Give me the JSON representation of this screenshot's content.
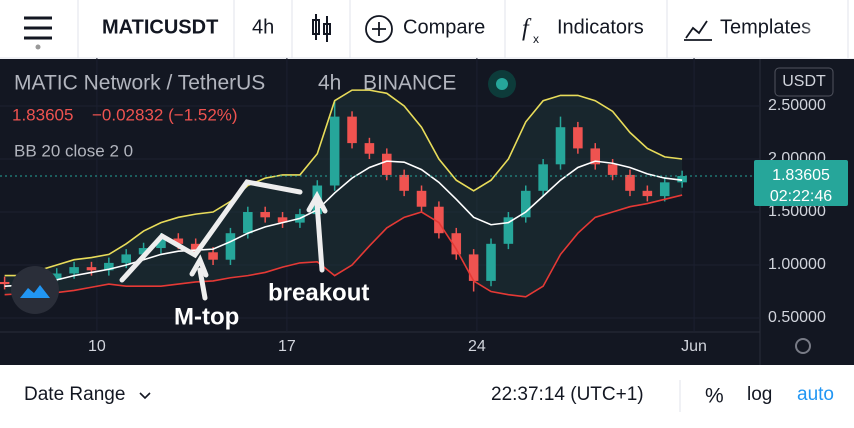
{
  "toolbar": {
    "symbol": "MATICUSDT",
    "interval": "4h",
    "compare": "Compare",
    "indicators": "Indicators",
    "templates": "Templates"
  },
  "legend": {
    "name": "MATIC Network / TetherUS",
    "interval": "4h",
    "exchange": "BINANCE",
    "price": "1.83605",
    "change": "−0.02832 (−1.52%)",
    "indicator": "BB 20 close 2 0"
  },
  "currency": "USDT",
  "last_price": "1.83605",
  "countdown": "02:22:46",
  "annotations": [
    "M-top",
    "breakout"
  ],
  "bottom": {
    "date_range": "Date Range",
    "time": "22:37:14 (UTC+1)",
    "percent": "%",
    "log": "log",
    "auto": "auto"
  },
  "chart_data": {
    "type": "candlestick",
    "x": [
      6.6,
      7.24,
      7.88,
      8.52,
      9.16,
      9.8,
      10.44,
      11.08,
      11.72,
      12.36,
      13,
      13.64,
      14.28,
      14.92,
      15.56,
      16.2,
      16.84,
      17.48,
      18.12,
      18.76,
      19.4,
      20.04,
      20.68,
      21.32,
      21.96,
      22.6,
      23.24,
      23.88,
      24.52,
      25.16,
      25.8,
      26.44,
      27.08,
      27.72,
      28.36,
      29,
      29.64,
      30.28,
      30.92,
      31.56
    ],
    "open": [
      0.84,
      0.82,
      0.8,
      0.86,
      0.92,
      0.98,
      0.95,
      1.02,
      1.1,
      1.16,
      1.25,
      1.2,
      1.12,
      1.05,
      1.3,
      1.5,
      1.45,
      1.4,
      1.48,
      1.75,
      2.4,
      2.15,
      2.05,
      1.85,
      1.7,
      1.55,
      1.3,
      1.1,
      0.85,
      1.2,
      1.45,
      1.7,
      1.95,
      2.3,
      2.1,
      1.95,
      1.85,
      1.7,
      1.65,
      1.78
    ],
    "high": [
      0.89,
      0.87,
      0.91,
      0.97,
      1.03,
      1.03,
      1.07,
      1.15,
      1.21,
      1.3,
      1.3,
      1.25,
      1.17,
      1.35,
      1.55,
      1.55,
      1.5,
      1.53,
      1.8,
      2.55,
      2.45,
      2.2,
      2.1,
      1.9,
      1.75,
      1.6,
      1.35,
      1.15,
      1.25,
      1.5,
      1.75,
      2.0,
      2.4,
      2.35,
      2.15,
      2.0,
      1.9,
      1.75,
      1.83,
      1.89
    ],
    "low": [
      0.77,
      0.75,
      0.75,
      0.81,
      0.87,
      0.9,
      0.9,
      0.97,
      1.05,
      1.11,
      1.15,
      1.07,
      1.0,
      1.0,
      1.25,
      1.4,
      1.35,
      1.35,
      1.43,
      1.7,
      2.1,
      2.0,
      1.8,
      1.65,
      1.5,
      1.25,
      1.05,
      0.75,
      0.8,
      1.15,
      1.4,
      1.65,
      1.9,
      2.05,
      1.9,
      1.8,
      1.65,
      1.6,
      1.6,
      1.73
    ],
    "close": [
      0.82,
      0.8,
      0.86,
      0.92,
      0.98,
      0.95,
      1.02,
      1.1,
      1.16,
      1.25,
      1.2,
      1.12,
      1.05,
      1.3,
      1.5,
      1.45,
      1.4,
      1.48,
      1.75,
      2.4,
      2.15,
      2.05,
      1.85,
      1.7,
      1.55,
      1.3,
      1.1,
      0.85,
      1.2,
      1.45,
      1.7,
      1.95,
      2.3,
      2.1,
      1.95,
      1.85,
      1.7,
      1.65,
      1.78,
      1.84
    ],
    "bands": [
      {
        "color": "#e8dc5a",
        "values": [
          0.9,
          0.9,
          0.95,
          1.0,
          1.05,
          1.07,
          1.1,
          1.2,
          1.32,
          1.4,
          1.45,
          1.48,
          1.5,
          1.6,
          1.75,
          1.82,
          1.85,
          1.85,
          2.05,
          2.55,
          2.65,
          2.65,
          2.62,
          2.5,
          2.3,
          2.0,
          1.8,
          1.7,
          1.8,
          2.0,
          2.35,
          2.55,
          2.6,
          2.6,
          2.55,
          2.45,
          2.25,
          2.1,
          2.02,
          2.0
        ]
      },
      {
        "color": "#ffffff",
        "values": [
          0.8,
          0.81,
          0.83,
          0.86,
          0.9,
          0.93,
          0.96,
          1.0,
          1.05,
          1.1,
          1.13,
          1.14,
          1.15,
          1.22,
          1.3,
          1.36,
          1.4,
          1.44,
          1.52,
          1.68,
          1.82,
          1.92,
          1.98,
          1.97,
          1.9,
          1.78,
          1.62,
          1.45,
          1.38,
          1.4,
          1.5,
          1.65,
          1.8,
          1.92,
          1.98,
          1.96,
          1.92,
          1.86,
          1.82,
          1.8
        ]
      },
      {
        "color": "#e53935",
        "values": [
          0.72,
          0.73,
          0.72,
          0.74,
          0.76,
          0.79,
          0.82,
          0.8,
          0.8,
          0.8,
          0.82,
          0.84,
          0.85,
          0.88,
          0.9,
          0.93,
          0.98,
          1.02,
          1.03,
          0.9,
          1.0,
          1.18,
          1.35,
          1.45,
          1.5,
          1.4,
          1.15,
          0.85,
          0.75,
          0.72,
          0.7,
          0.8,
          1.1,
          1.3,
          1.45,
          1.5,
          1.55,
          1.58,
          1.62,
          1.66
        ]
      }
    ],
    "up_color": "#26a69a",
    "down_color": "#ef5350",
    "xlim": [
      6.43,
      34.43
    ],
    "ylim": [
      0.368,
      2.953
    ],
    "xticks": [
      10,
      17,
      24,
      {
        "value": 32,
        "label": "Jun"
      }
    ],
    "yticks": [
      {
        "value": 2.5,
        "label": "2.50000"
      },
      {
        "value": 2,
        "label": "2.00000"
      },
      {
        "value": 1.5,
        "label": "1.50000"
      },
      {
        "value": 1,
        "label": "1.00000"
      },
      {
        "value": 0.5,
        "label": "0.50000"
      }
    ]
  }
}
